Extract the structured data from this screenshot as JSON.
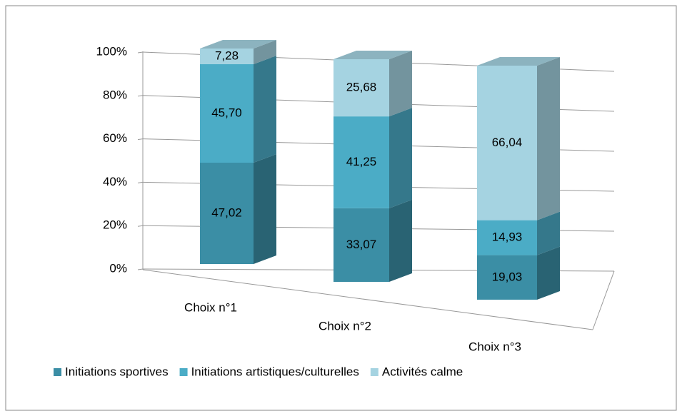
{
  "chart_data": {
    "type": "bar",
    "stacked": true,
    "categories": [
      "Choix n°1",
      "Choix n°2",
      "Choix n°3"
    ],
    "series": [
      {
        "name": "Initiations sportives",
        "color": "#3b8ea5",
        "values": [
          47.02,
          33.07,
          19.03
        ],
        "value_labels": [
          "47,02",
          "33,07",
          "19,03"
        ]
      },
      {
        "name": "Initiations artistiques/culturelles",
        "color": "#4bacc6",
        "values": [
          45.7,
          41.25,
          14.93
        ],
        "value_labels": [
          "45,70",
          "41,25",
          "14,93"
        ]
      },
      {
        "name": "Activités calme",
        "color": "#a5d3e1",
        "values": [
          7.28,
          25.68,
          66.04
        ],
        "value_labels": [
          "7,28",
          "25,68",
          "66,04"
        ]
      }
    ],
    "ylim": [
      0,
      100
    ],
    "yticks": [
      {
        "value": 0,
        "label": "0%"
      },
      {
        "value": 20,
        "label": "20%"
      },
      {
        "value": 40,
        "label": "40%"
      },
      {
        "value": 60,
        "label": "60%"
      },
      {
        "value": 80,
        "label": "80%"
      },
      {
        "value": 100,
        "label": "100%"
      }
    ],
    "grid": true,
    "legend": "bottom"
  }
}
